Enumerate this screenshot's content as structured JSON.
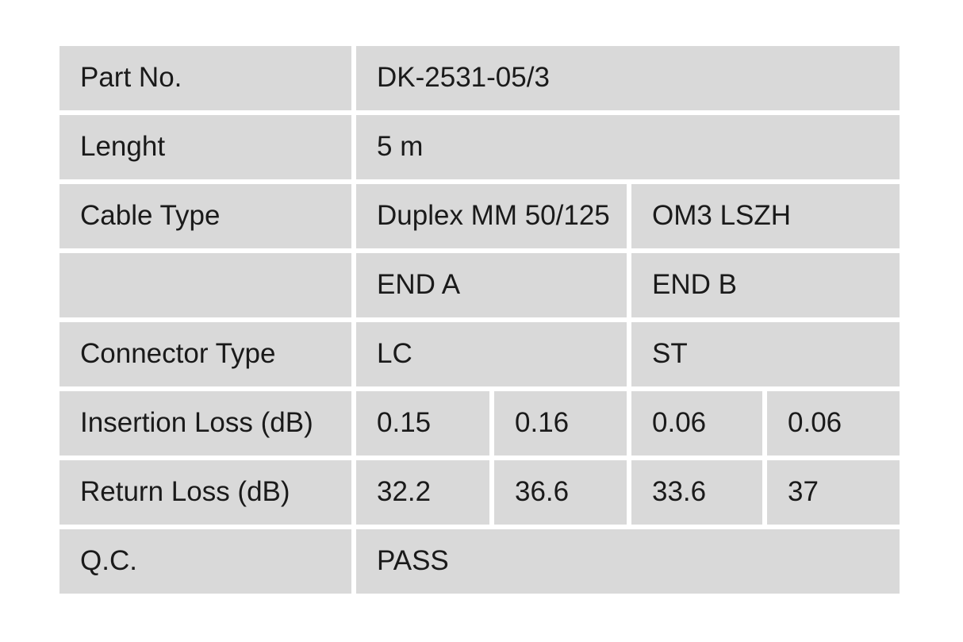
{
  "page": {
    "background": "#ffffff"
  },
  "table": {
    "cell_bg": "#d9d9d9",
    "text_color": "#1a1a1a",
    "rows": {
      "part_no": {
        "label": "Part No.",
        "value": "DK-2531-05/3"
      },
      "length": {
        "label": "Lenght",
        "value": "5 m"
      },
      "cable_type": {
        "label": "Cable Type",
        "value_left": "Duplex MM 50/125",
        "value_right": "OM3 LSZH"
      },
      "ends_header": {
        "label": "",
        "end_a": "END A",
        "end_b": "END B"
      },
      "connector_type": {
        "label": "Connector Type",
        "end_a": "LC",
        "end_b": "ST"
      },
      "insertion_loss": {
        "label": "Insertion Loss (dB)",
        "end_a_1": "0.15",
        "end_a_2": "0.16",
        "end_b_1": "0.06",
        "end_b_2": "0.06"
      },
      "return_loss": {
        "label": "Return Loss (dB)",
        "end_a_1": "32.2",
        "end_a_2": "36.6",
        "end_b_1": "33.6",
        "end_b_2": "37"
      },
      "qc": {
        "label": "Q.C.",
        "value": "PASS"
      }
    }
  }
}
